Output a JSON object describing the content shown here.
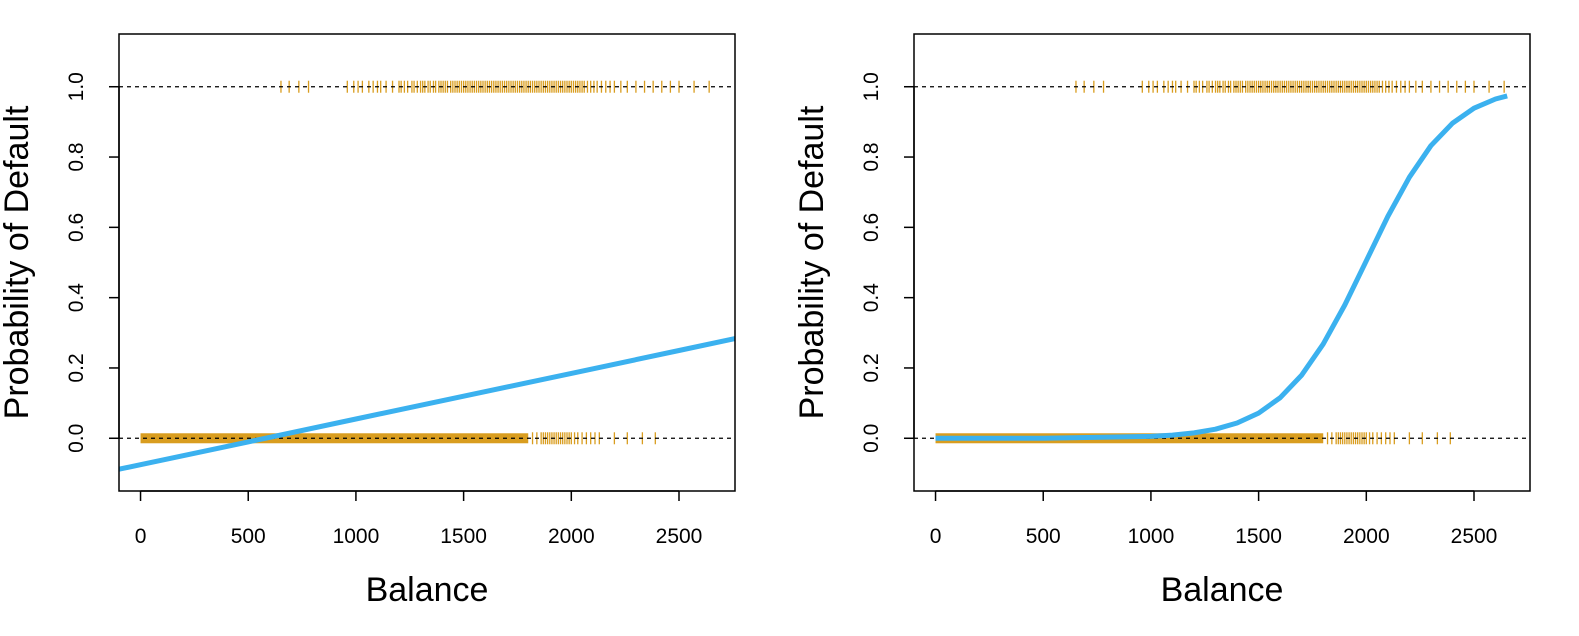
{
  "chart_data": [
    {
      "type": "line",
      "title": "",
      "xlabel": "Balance",
      "ylabel": "Probability of Default",
      "xlim": [
        -100,
        2760
      ],
      "ylim": [
        -0.15,
        1.15
      ],
      "x_ticks": [
        0,
        500,
        1000,
        1500,
        2000,
        2500
      ],
      "y_ticks": [
        0.0,
        0.2,
        0.4,
        0.6,
        0.8,
        1.0
      ],
      "x_tick_labels": [
        "0",
        "500",
        "1000",
        "1500",
        "2000",
        "2500"
      ],
      "y_tick_labels": [
        "0.0",
        "0.2",
        "0.4",
        "0.6",
        "0.8",
        "1.0"
      ],
      "reference_lines": [
        0,
        1
      ],
      "grid": false,
      "fit": {
        "kind": "linear",
        "x": [
          -100,
          0,
          500,
          1000,
          1500,
          2000,
          2500,
          2760
        ],
        "y": [
          -0.088,
          -0.0752,
          -0.0102,
          0.0547,
          0.1197,
          0.1846,
          0.2496,
          0.2834
        ]
      },
      "rug_default_yes_balances": [
        652,
        690,
        735,
        780,
        960,
        990,
        1010,
        1030,
        1060,
        1080,
        1100,
        1115,
        1140,
        1170,
        1200,
        1210,
        1225,
        1240,
        1260,
        1270,
        1285,
        1300,
        1310,
        1320,
        1335,
        1345,
        1360,
        1370,
        1385,
        1395,
        1405,
        1415,
        1425,
        1440,
        1450,
        1460,
        1470,
        1480,
        1490,
        1500,
        1510,
        1520,
        1530,
        1540,
        1550,
        1560,
        1570,
        1580,
        1590,
        1600,
        1610,
        1620,
        1630,
        1640,
        1650,
        1660,
        1670,
        1680,
        1690,
        1700,
        1710,
        1720,
        1730,
        1740,
        1750,
        1760,
        1770,
        1780,
        1790,
        1800,
        1810,
        1820,
        1830,
        1840,
        1850,
        1860,
        1870,
        1880,
        1890,
        1900,
        1910,
        1920,
        1930,
        1940,
        1950,
        1960,
        1970,
        1980,
        1990,
        2000,
        2010,
        2020,
        2030,
        2040,
        2050,
        2060,
        2075,
        2090,
        2105,
        2120,
        2140,
        2160,
        2180,
        2200,
        2230,
        2260,
        2300,
        2340,
        2380,
        2420,
        2460,
        2500,
        2570,
        2640
      ],
      "rug_default_no_balances": [
        1820,
        1840,
        1860,
        1870,
        1880,
        1890,
        1900,
        1910,
        1920,
        1930,
        1940,
        1950,
        1960,
        1970,
        1980,
        1990,
        2000,
        2015,
        2030,
        2050,
        2070,
        2090,
        2110,
        2130,
        2200,
        2260,
        2330,
        2390
      ],
      "rug_default_no_solid_range": [
        0,
        1800
      ],
      "colors": {
        "fit_line": "#3bb1ef",
        "rug": "#d99d1f",
        "reference_line": "#000000"
      }
    },
    {
      "type": "line",
      "title": "",
      "xlabel": "Balance",
      "ylabel": "Probability of Default",
      "xlim": [
        -100,
        2760
      ],
      "ylim": [
        -0.15,
        1.15
      ],
      "x_ticks": [
        0,
        500,
        1000,
        1500,
        2000,
        2500
      ],
      "y_ticks": [
        0.0,
        0.2,
        0.4,
        0.6,
        0.8,
        1.0
      ],
      "x_tick_labels": [
        "0",
        "500",
        "1000",
        "1500",
        "2000",
        "2500"
      ],
      "y_tick_labels": [
        "0.0",
        "0.2",
        "0.4",
        "0.6",
        "0.8",
        "1.0"
      ],
      "reference_lines": [
        0,
        1
      ],
      "grid": false,
      "fit": {
        "kind": "logistic",
        "x": [
          0,
          500,
          1000,
          1100,
          1200,
          1300,
          1400,
          1500,
          1600,
          1700,
          1800,
          1900,
          2000,
          2100,
          2200,
          2300,
          2400,
          2500,
          2600,
          2654
        ],
        "y": [
          0.0,
          0.0002,
          0.0052,
          0.0089,
          0.0152,
          0.0258,
          0.0433,
          0.0716,
          0.1153,
          0.1797,
          0.268,
          0.3792,
          0.5049,
          0.6308,
          0.7427,
          0.8322,
          0.8964,
          0.9389,
          0.9651,
          0.9738
        ]
      },
      "rug_default_yes_balances": [
        652,
        690,
        735,
        780,
        960,
        990,
        1010,
        1030,
        1060,
        1080,
        1100,
        1115,
        1140,
        1170,
        1200,
        1210,
        1225,
        1240,
        1260,
        1270,
        1285,
        1300,
        1310,
        1320,
        1335,
        1345,
        1360,
        1370,
        1385,
        1395,
        1405,
        1415,
        1425,
        1440,
        1450,
        1460,
        1470,
        1480,
        1490,
        1500,
        1510,
        1520,
        1530,
        1540,
        1550,
        1560,
        1570,
        1580,
        1590,
        1600,
        1610,
        1620,
        1630,
        1640,
        1650,
        1660,
        1670,
        1680,
        1690,
        1700,
        1710,
        1720,
        1730,
        1740,
        1750,
        1760,
        1770,
        1780,
        1790,
        1800,
        1810,
        1820,
        1830,
        1840,
        1850,
        1860,
        1870,
        1880,
        1890,
        1900,
        1910,
        1920,
        1930,
        1940,
        1950,
        1960,
        1970,
        1980,
        1990,
        2000,
        2010,
        2020,
        2030,
        2040,
        2050,
        2060,
        2075,
        2090,
        2105,
        2120,
        2140,
        2160,
        2180,
        2200,
        2230,
        2260,
        2300,
        2340,
        2380,
        2420,
        2460,
        2500,
        2570,
        2640
      ],
      "rug_default_no_balances": [
        1820,
        1840,
        1860,
        1870,
        1880,
        1890,
        1900,
        1910,
        1920,
        1930,
        1940,
        1950,
        1960,
        1970,
        1980,
        1990,
        2000,
        2015,
        2030,
        2050,
        2070,
        2090,
        2110,
        2130,
        2200,
        2260,
        2330,
        2390
      ],
      "rug_default_no_solid_range": [
        0,
        1800
      ],
      "colors": {
        "fit_line": "#3bb1ef",
        "rug": "#d99d1f",
        "reference_line": "#000000"
      }
    }
  ]
}
